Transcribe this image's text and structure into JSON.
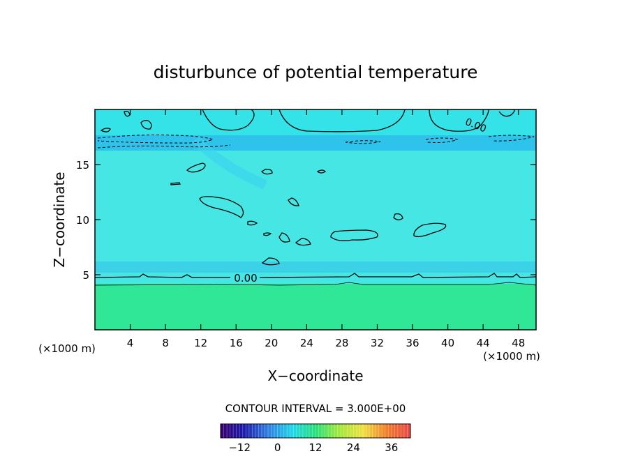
{
  "chart_data": {
    "type": "heatmap",
    "title": "disturbunce of potential temperature",
    "xlabel": "X−coordinate",
    "ylabel": "Z−coordinate",
    "x_unit": "(×1000 m)",
    "y_unit": "(×1000 m)",
    "xlim": [
      0,
      50
    ],
    "ylim": [
      0,
      20
    ],
    "x_ticks": [
      "4",
      "8",
      "12",
      "16",
      "20",
      "24",
      "28",
      "32",
      "36",
      "40",
      "44",
      "48"
    ],
    "y_ticks": [
      "5",
      "10",
      "15"
    ],
    "contour_interval_text": "CONTOUR INTERVAL = 3.000E+00",
    "contour_labels": [
      "0.00",
      "0.00"
    ],
    "colorbar": {
      "min": -18,
      "max": 42,
      "tick_labels": [
        "−12",
        "0",
        "12",
        "24",
        "36"
      ],
      "tick_values": [
        -12,
        0,
        12,
        24,
        36
      ]
    },
    "fields": {
      "lower_layer": {
        "z_range": [
          0,
          4.2
        ],
        "value": 3
      },
      "middle_layer": {
        "z_range": [
          4.9,
          16.2
        ],
        "value": -1.5
      },
      "stratosphere_layer": {
        "z_range": [
          16.2,
          17.6
        ],
        "value": -3
      },
      "upper_layer": {
        "z_range": [
          17.6,
          20
        ],
        "value": -1
      }
    },
    "grid": false,
    "legend": "colorbar-bottom"
  }
}
